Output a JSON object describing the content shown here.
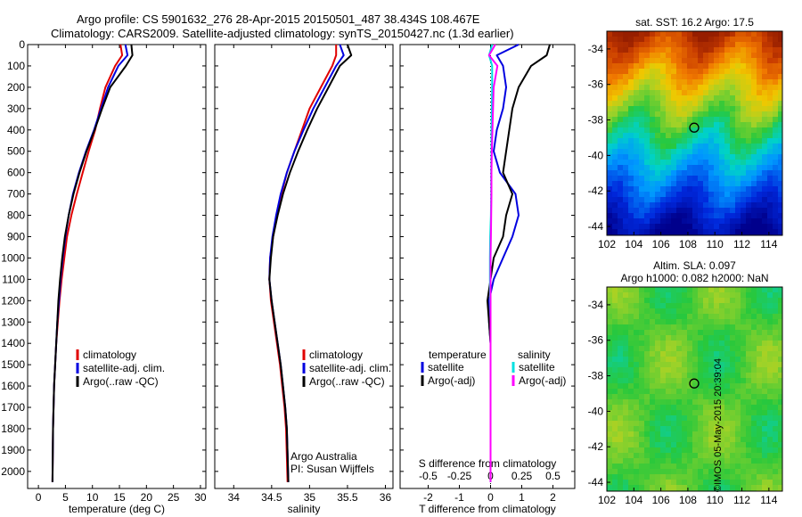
{
  "header": {
    "line1": "Argo profile: CS 5901632_276 28-Apr-2015 20150501_487 38.434S 108.467E",
    "line2": "Climatology: CARS2009. Satellite-adjusted climatology: synTS_20150427.nc (1.3d earlier)"
  },
  "colors": {
    "climatology": "#e00000",
    "satellite": "#0000e0",
    "argo": "#000000",
    "sal_sat": "#00e0e0",
    "sal_argo": "#ff00ff"
  },
  "legend": {
    "climatology": "climatology",
    "satellite": "satellite-adj. clim.",
    "argo": "Argo(..raw -QC)",
    "diff_temperature": "temperature",
    "diff_salinity": "salinity",
    "diff_satellite": "satellite",
    "diff_argo": "Argo(-adj)"
  },
  "credits": {
    "org": "Argo Australia",
    "pi": "PI: Susan Wijffels",
    "stamp": "©IMOS 05-May-2015 20:39:04"
  },
  "chart_data": [
    {
      "id": "temperature",
      "type": "line",
      "xlabel": "temperature (deg C)",
      "ylabel": "",
      "xlim": [
        -2,
        31
      ],
      "ylim": [
        2080,
        0
      ],
      "xticks": [
        0,
        5,
        10,
        15,
        20,
        25,
        30
      ],
      "yticks": [
        0,
        100,
        200,
        300,
        400,
        500,
        600,
        700,
        800,
        900,
        1000,
        1100,
        1200,
        1300,
        1400,
        1500,
        1600,
        1700,
        1800,
        1900,
        2000
      ],
      "series": [
        {
          "name": "climatology",
          "color": "#e00000",
          "x": [
            15.2,
            15.5,
            14.2,
            12.4,
            11.4,
            10.5,
            9.3,
            8.2,
            7.1,
            6.1,
            5.3,
            4.8,
            4.3,
            3.9,
            3.6,
            3.3,
            3.1,
            2.9,
            2.8,
            2.7,
            2.6
          ],
          "y": [
            0,
            50,
            100,
            200,
            300,
            400,
            500,
            600,
            700,
            800,
            900,
            1000,
            1100,
            1200,
            1300,
            1400,
            1500,
            1600,
            1700,
            1800,
            2050
          ]
        },
        {
          "name": "satellite-adj. clim.",
          "color": "#0000e0",
          "x": [
            16.1,
            16.5,
            14.8,
            12.9,
            11.6,
            10.3,
            8.8,
            7.5,
            6.4,
            5.6,
            5.0,
            4.5,
            4.1,
            3.8,
            3.5,
            3.3,
            3.1,
            2.9,
            2.8,
            2.7,
            2.6
          ],
          "y": [
            0,
            50,
            100,
            200,
            300,
            400,
            500,
            600,
            700,
            800,
            900,
            1000,
            1100,
            1200,
            1300,
            1400,
            1500,
            1600,
            1700,
            1800,
            2050
          ]
        },
        {
          "name": "Argo(..raw -QC)",
          "color": "#000000",
          "x": [
            17.2,
            17.4,
            16.2,
            13.3,
            11.8,
            10.4,
            8.9,
            7.6,
            6.5,
            5.6,
            4.9,
            4.4,
            4.0,
            3.7,
            3.5,
            3.3,
            3.1,
            2.9,
            2.8,
            2.7,
            2.6
          ],
          "y": [
            0,
            50,
            100,
            200,
            300,
            400,
            500,
            600,
            700,
            800,
            900,
            1000,
            1100,
            1200,
            1300,
            1400,
            1500,
            1600,
            1700,
            1800,
            2050
          ]
        }
      ]
    },
    {
      "id": "salinity",
      "type": "line",
      "xlabel": "salinity",
      "ylabel": "",
      "xlim": [
        33.75,
        36.1
      ],
      "ylim": [
        2080,
        0
      ],
      "xticks": [
        34,
        34.5,
        35,
        35.5,
        36
      ],
      "series": [
        {
          "name": "climatology",
          "color": "#e00000",
          "x": [
            35.35,
            35.35,
            35.3,
            35.15,
            35.0,
            34.9,
            34.8,
            34.7,
            34.63,
            34.57,
            34.52,
            34.48,
            34.47,
            34.49,
            34.53,
            34.57,
            34.61,
            34.64,
            34.67,
            34.69,
            34.71
          ],
          "y": [
            0,
            50,
            100,
            200,
            300,
            400,
            500,
            600,
            700,
            800,
            900,
            1000,
            1100,
            1200,
            1300,
            1400,
            1500,
            1600,
            1700,
            1800,
            2050
          ]
        },
        {
          "name": "satellite-adj. clim.",
          "color": "#0000e0",
          "x": [
            35.4,
            35.45,
            35.35,
            35.2,
            35.05,
            34.92,
            34.8,
            34.7,
            34.62,
            34.56,
            34.51,
            34.48,
            34.47,
            34.5,
            34.54,
            34.58,
            34.62,
            34.65,
            34.68,
            34.7,
            34.72
          ],
          "y": [
            0,
            50,
            100,
            200,
            300,
            400,
            500,
            600,
            700,
            800,
            900,
            1000,
            1100,
            1200,
            1300,
            1400,
            1500,
            1600,
            1700,
            1800,
            2050
          ]
        },
        {
          "name": "Argo(..raw -QC)",
          "color": "#000000",
          "x": [
            35.5,
            35.55,
            35.4,
            35.25,
            35.1,
            34.97,
            34.85,
            34.74,
            34.65,
            34.58,
            34.52,
            34.49,
            34.47,
            34.5,
            34.54,
            34.58,
            34.62,
            34.65,
            34.68,
            34.7,
            34.72
          ],
          "y": [
            0,
            50,
            100,
            200,
            300,
            400,
            500,
            600,
            700,
            800,
            900,
            1000,
            1100,
            1200,
            1300,
            1400,
            1500,
            1600,
            1700,
            1800,
            2050
          ]
        }
      ]
    },
    {
      "id": "difference",
      "type": "line",
      "xlabel": "T difference from climatology",
      "xlabel_top": "S difference from climatology",
      "xlim": [
        -2.9,
        2.7
      ],
      "ylim": [
        2080,
        0
      ],
      "xticks": [
        -2,
        -1,
        0,
        1,
        2
      ],
      "xticks_top": [
        -0.5,
        -0.25,
        0,
        0.25,
        0.5
      ],
      "series": [
        {
          "name": "temperature satellite",
          "color": "#0000e0",
          "x": [
            0.9,
            0.2,
            0.4,
            0.5,
            0.4,
            0.2,
            0.1,
            0.3,
            0.8,
            0.9,
            0.7,
            0.4,
            0.1,
            -0.05,
            -0.05,
            0,
            0,
            0,
            0,
            0,
            0
          ],
          "y": [
            0,
            50,
            100,
            200,
            300,
            400,
            500,
            600,
            700,
            800,
            900,
            1000,
            1100,
            1200,
            1300,
            1400,
            1500,
            1600,
            1700,
            1800,
            2050
          ]
        },
        {
          "name": "temperature Argo(-adj)",
          "color": "#000000",
          "x": [
            1.9,
            1.8,
            1.3,
            0.9,
            0.7,
            0.6,
            0.5,
            0.4,
            0.7,
            0.5,
            0.4,
            0.1,
            0,
            -0.1,
            -0.05,
            0,
            0,
            0,
            0,
            0,
            0
          ],
          "y": [
            0,
            50,
            100,
            200,
            300,
            400,
            500,
            600,
            700,
            800,
            900,
            1000,
            1100,
            1200,
            1300,
            1400,
            1500,
            1600,
            1700,
            1800,
            2050
          ]
        },
        {
          "name": "salinity satellite",
          "color": "#00e0e0",
          "x": [
            0.05,
            -0.05,
            0.05,
            0.05,
            0.04,
            0.03,
            0.03,
            0.02,
            0.02,
            0.01,
            -0.01,
            -0.02,
            -0.02,
            -0.01,
            0,
            0,
            0,
            0,
            0,
            0,
            0
          ],
          "y": [
            0,
            50,
            100,
            200,
            300,
            400,
            500,
            600,
            700,
            800,
            900,
            1000,
            1100,
            1200,
            1300,
            1400,
            1500,
            1600,
            1700,
            1800,
            2050
          ]
        },
        {
          "name": "salinity Argo(-adj)",
          "color": "#ff00ff",
          "x": [
            0.15,
            -0.05,
            0.22,
            0.1,
            0.08,
            0.06,
            0.04,
            0.03,
            0.03,
            0.02,
            0.01,
            0,
            0,
            0,
            0,
            0,
            0,
            0,
            0,
            0,
            0
          ],
          "y": [
            0,
            50,
            100,
            200,
            300,
            400,
            500,
            600,
            700,
            800,
            900,
            1000,
            1100,
            1200,
            1300,
            1400,
            1500,
            1600,
            1700,
            1800,
            2050
          ]
        }
      ]
    },
    {
      "id": "sst_map",
      "type": "heatmap",
      "title": "sat. SST: 16.2 Argo: 17.5",
      "xlim": [
        102,
        115
      ],
      "ylim": [
        -44.5,
        -33
      ],
      "xticks": [
        102,
        104,
        106,
        108,
        110,
        112,
        114
      ],
      "yticks": [
        -34,
        -36,
        -38,
        -40,
        -42,
        -44
      ],
      "marker": {
        "lon": 108.467,
        "lat": -38.434
      }
    },
    {
      "id": "sla_map",
      "type": "heatmap",
      "title": "Altim. SLA: 0.097",
      "subtitle": "Argo h1000: 0.082 h2000: NaN",
      "xlim": [
        102,
        115
      ],
      "ylim": [
        -44.5,
        -33
      ],
      "xticks": [
        102,
        104,
        106,
        108,
        110,
        112,
        114
      ],
      "yticks": [
        -34,
        -36,
        -38,
        -40,
        -42,
        -44
      ],
      "marker": {
        "lon": 108.467,
        "lat": -38.434
      }
    }
  ]
}
